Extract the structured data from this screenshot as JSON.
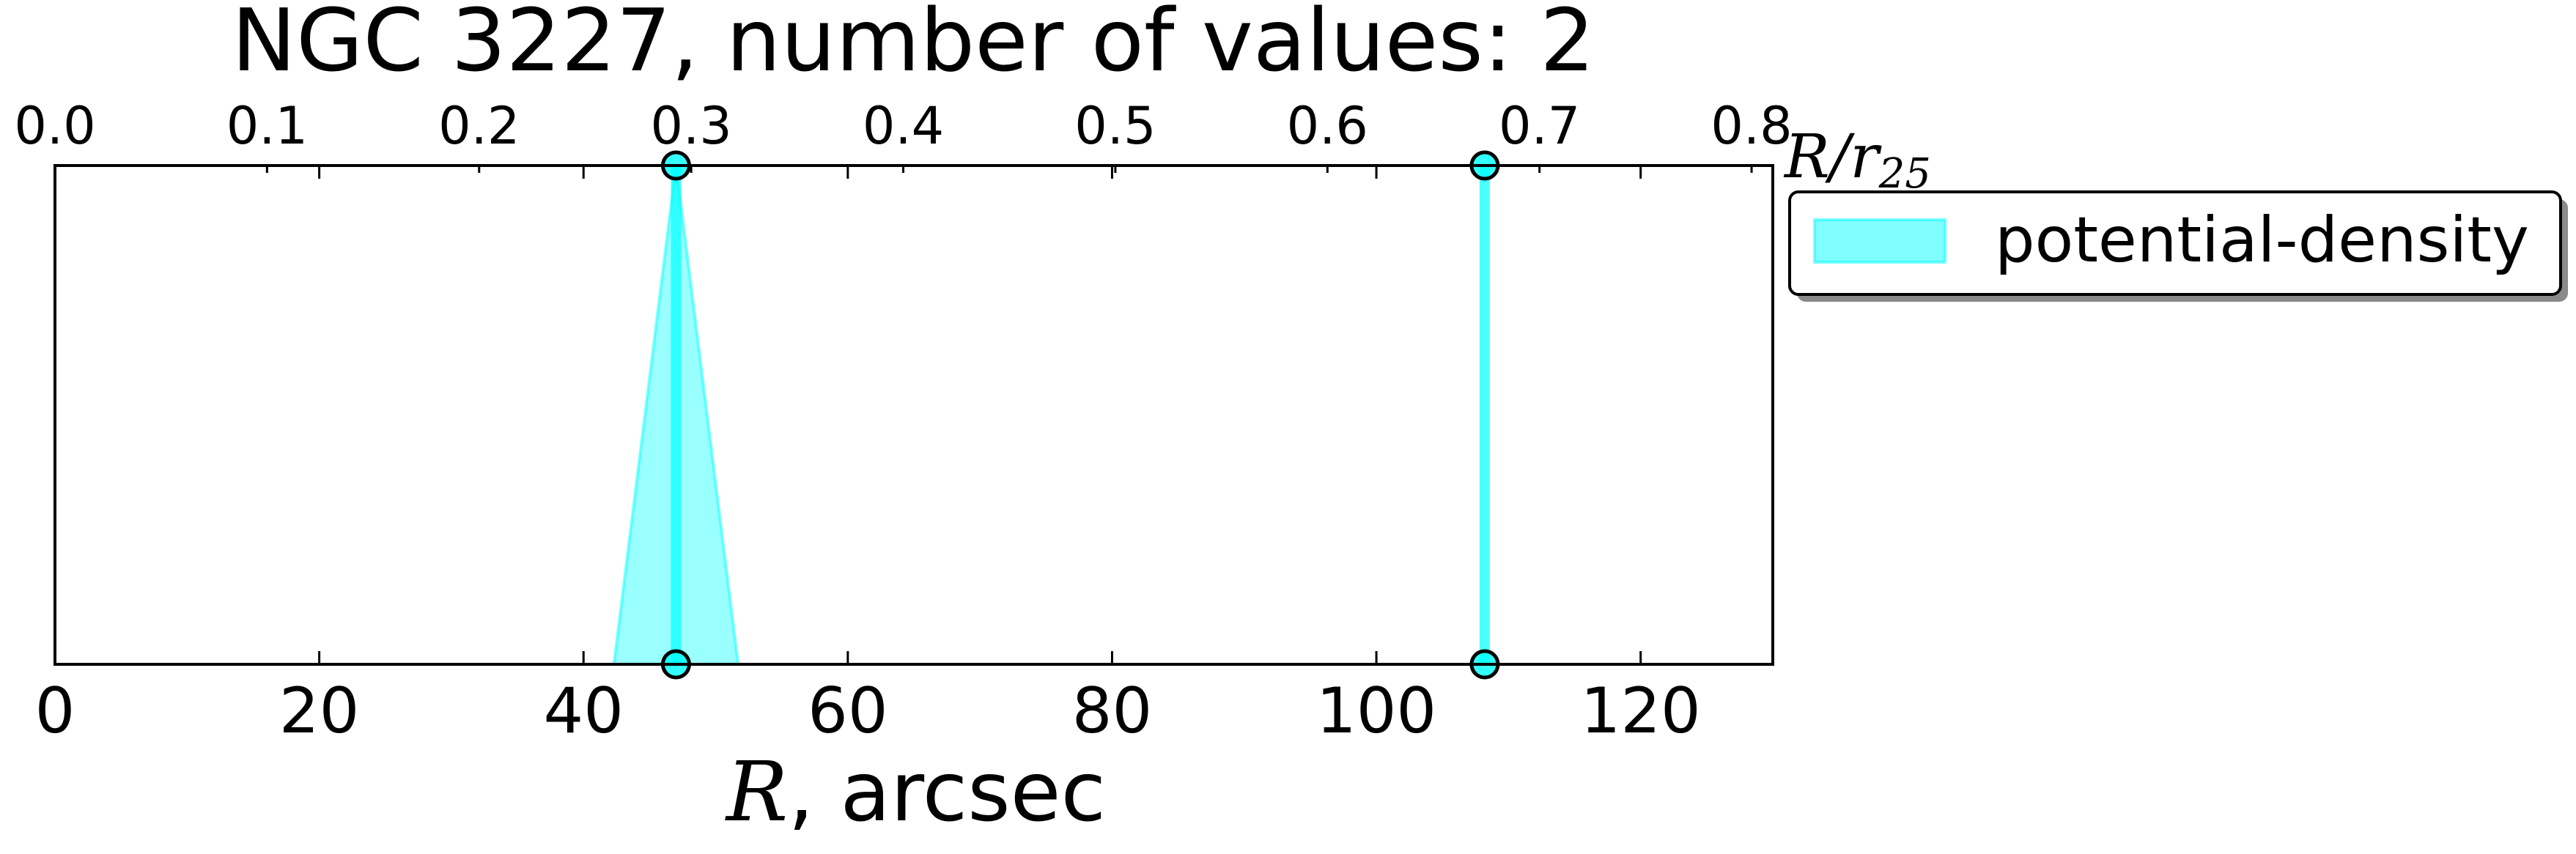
{
  "chart_data": {
    "type": "line",
    "title": "NGC 3227, number of values: 2",
    "xlabel": "R, arcsec",
    "xlabel_var": "R",
    "xlabel_unit": ", arcsec",
    "x2label": "R/r25",
    "x2label_var": "R/r",
    "x2label_sub": "25",
    "xlim": [
      0,
      130
    ],
    "x2lim": [
      0.0,
      0.81
    ],
    "xticks": [
      "0",
      "20",
      "40",
      "60",
      "80",
      "100",
      "120"
    ],
    "xticks_values": [
      0,
      20,
      40,
      60,
      80,
      100,
      120
    ],
    "x2ticks": [
      "0.0",
      "0.1",
      "0.2",
      "0.3",
      "0.4",
      "0.5",
      "0.6",
      "0.7",
      "0.8"
    ],
    "x2ticks_values": [
      0.0,
      0.1,
      0.2,
      0.3,
      0.4,
      0.5,
      0.6,
      0.7,
      0.8
    ],
    "y_ticks_shown": false,
    "grid": false,
    "legend_position": "outside-right-top",
    "series": [
      {
        "name": "potential-density",
        "color": "#00ffff",
        "values_at": [
          47.0,
          108.2
        ],
        "uncertainty_bands": [
          [
            42.3,
            51.7
          ],
          [
            108.2,
            108.2
          ]
        ]
      }
    ]
  }
}
